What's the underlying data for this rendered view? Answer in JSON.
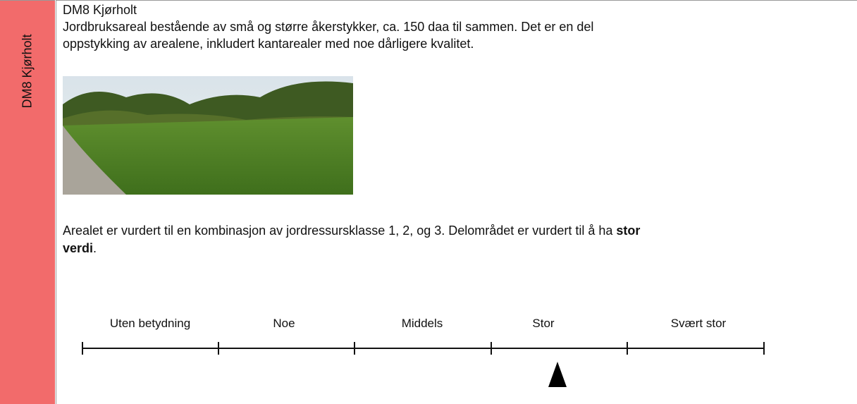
{
  "sidebar_label": "DM8 Kjørholt",
  "title": "DM8 Kjørholt",
  "paragraph_1": [
    "Jordbruksareal bestående av små og større åkerstykker, ca. 150 daa til sammen. Det er en del",
    "oppstykking av arealene, inkludert kantarealer med noe dårligere kvalitet."
  ],
  "paragraph_2": {
    "line_1": "Arealet er vurdert til en kombinasjon av jordressursklasse 1, 2, og 3. Delområdet er vurdert til å ha",
    "bold_1": "stor",
    "bold_2": "verdi",
    "end": "."
  },
  "scale": {
    "labels": [
      "Uten betydning",
      "Noe",
      "Middels",
      "Stor",
      "Svært stor"
    ]
  }
}
